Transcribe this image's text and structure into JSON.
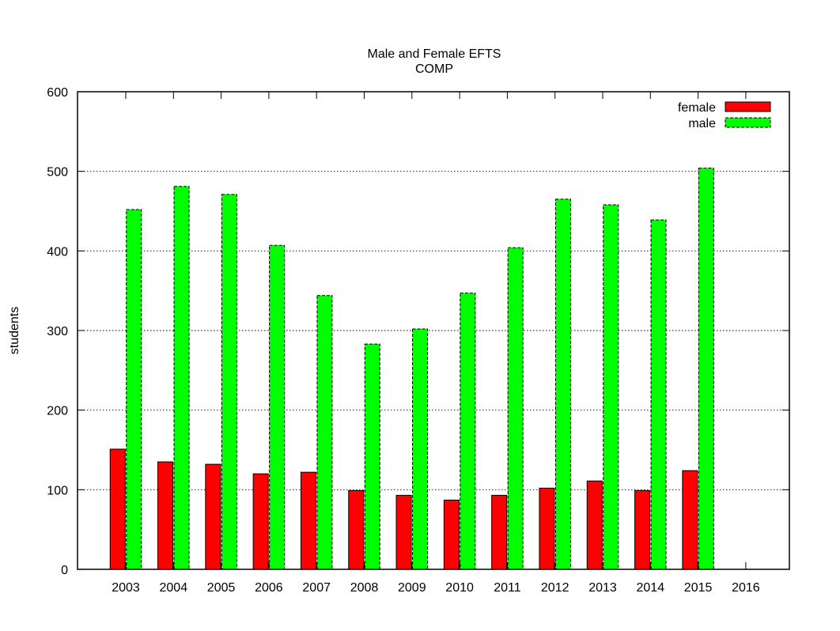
{
  "chart_data": {
    "type": "bar",
    "title": "Male and Female EFTS",
    "subtitle": "COMP",
    "xlabel": "",
    "ylabel": "students",
    "ylim": [
      0,
      600
    ],
    "yticks": [
      0,
      100,
      200,
      300,
      400,
      500,
      600
    ],
    "grid": "horizontal dotted",
    "legend_position": "top-right",
    "categories": [
      "2003",
      "2004",
      "2005",
      "2006",
      "2007",
      "2008",
      "2009",
      "2010",
      "2011",
      "2012",
      "2013",
      "2014",
      "2015",
      "2016"
    ],
    "series": [
      {
        "name": "female",
        "color": "#ff0000",
        "border": "solid",
        "values": [
          151,
          135,
          132,
          120,
          122,
          99,
          93,
          87,
          93,
          102,
          111,
          99,
          124,
          null
        ]
      },
      {
        "name": "male",
        "color": "#00ff00",
        "border": "dashed",
        "values": [
          452,
          481,
          471,
          407,
          344,
          283,
          302,
          347,
          404,
          465,
          458,
          439,
          504,
          null
        ]
      }
    ]
  }
}
